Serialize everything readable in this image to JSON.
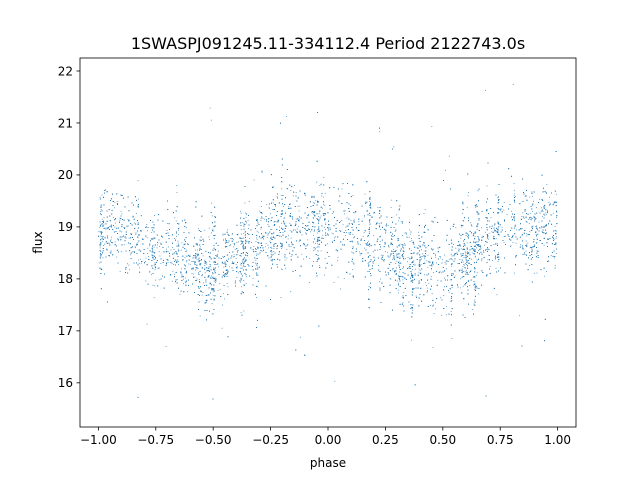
{
  "chart_data": {
    "type": "scatter",
    "title": "1SWASPJ091245.11-334112.4 Period 2122743.0s",
    "xlabel": "phase",
    "ylabel": "flux",
    "xlim": [
      -1.08,
      1.08
    ],
    "ylim": [
      15.15,
      22.25
    ],
    "xticks": [
      -1.0,
      -0.75,
      -0.5,
      -0.25,
      0.0,
      0.25,
      0.5,
      0.75,
      1.0
    ],
    "xtick_labels": [
      "−1.00",
      "−0.75",
      "−0.50",
      "−0.25",
      "0.00",
      "0.25",
      "0.50",
      "0.75",
      "1.00"
    ],
    "yticks": [
      16,
      17,
      18,
      19,
      20,
      21,
      22
    ],
    "ytick_labels": [
      "16",
      "17",
      "18",
      "19",
      "20",
      "21",
      "22"
    ],
    "grid": false,
    "marker_color": "#1f77b4",
    "series": [
      {
        "x_range": [
          -1.0,
          1.0
        ],
        "trend_phase": [
          -1.0,
          -0.9,
          -0.75,
          -0.6,
          -0.5,
          -0.4,
          -0.25,
          -0.1,
          0.0,
          0.1,
          0.25,
          0.4,
          0.5,
          0.6,
          0.75,
          0.9,
          1.0
        ],
        "trend_flux": [
          19.0,
          18.9,
          18.5,
          18.3,
          18.2,
          18.4,
          18.9,
          19.0,
          19.0,
          18.9,
          18.5,
          18.3,
          18.2,
          18.4,
          18.9,
          19.0,
          19.0
        ],
        "flux_min": 15.4,
        "flux_max": 21.9
      }
    ]
  }
}
